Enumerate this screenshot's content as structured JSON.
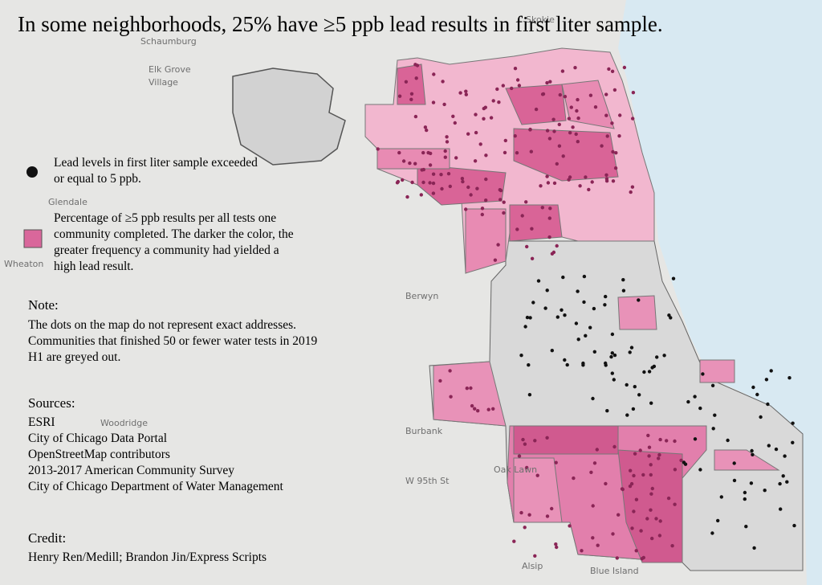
{
  "title": "In some neighborhoods, 25% have ≥5 ppb lead results in first liter sample.",
  "legend": {
    "items": [
      {
        "lines": [
          "Lead levels in first liter sample exceeded",
          "or equal to 5 ppb."
        ]
      },
      {
        "lines": [
          "Percentage of ≥5 ppb results per all tests one",
          "community completed. The darker the color, the",
          "greater frequency a community had yielded a",
          "high lead result."
        ]
      }
    ]
  },
  "note": {
    "heading": "Note:",
    "lines": [
      "The dots on the map do not represent exact addresses.",
      "Communities that finished 50 or fewer water tests in 2019",
      "H1 are greyed out."
    ]
  },
  "sources": {
    "heading": "Sources:",
    "items": [
      "ESRI",
      "City of Chicago Data Portal",
      "OpenStreetMap contributors",
      "2013-2017 American Community Survey",
      "City of Chicago Department of Water Management"
    ]
  },
  "credit": {
    "heading": "Credit:",
    "text": "Henry Ren/Medill; Brandon Jin/Express Scripts"
  },
  "map_labels": [
    "Schaumburg",
    "Elk Grove",
    "Village",
    "Skokie",
    "Glendale",
    "Wheaton",
    "Berwyn",
    "Burbank",
    "Woodridge",
    "Oak Lawn",
    "Alsip",
    "Blue Island",
    "W 95th St"
  ]
}
